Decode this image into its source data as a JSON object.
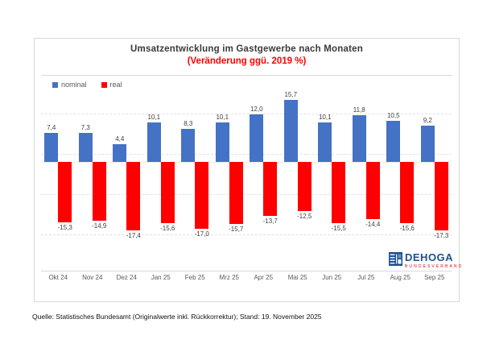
{
  "chart": {
    "title": "Umsatzentwicklung im Gastgewerbe nach Monaten",
    "subtitle": "(Veränderung ggü. 2019 %)",
    "subtitle_color": "#ff0000",
    "legend": [
      {
        "label": "nominal",
        "color": "#4472C4"
      },
      {
        "label": "real",
        "color": "#FF0000"
      }
    ]
  },
  "chart_data": {
    "type": "bar",
    "title": "Umsatzentwicklung im Gastgewerbe nach Monaten",
    "subtitle": "(Veränderung ggü. 2019 %)",
    "categories": [
      "Okt 24",
      "Nov 24",
      "Dez 24",
      "Jan 25",
      "Feb 25",
      "Mrz 25",
      "Apr 25",
      "Mai 25",
      "Jun 25",
      "Jul 25",
      "Aug 25",
      "Sep 25"
    ],
    "series": [
      {
        "name": "nominal",
        "color": "#4472C4",
        "values": [
          7.4,
          7.3,
          4.4,
          10.1,
          8.3,
          10.1,
          12.0,
          15.7,
          10.1,
          11.8,
          10.5,
          9.2
        ],
        "labels": [
          "7,4",
          "7,3",
          "4,4",
          "10,1",
          "8,3",
          "10,1",
          "12,0",
          "15,7",
          "10,1",
          "11,8",
          "10,5",
          "9,2"
        ]
      },
      {
        "name": "real",
        "color": "#FF0000",
        "values": [
          -15.3,
          -14.9,
          -17.4,
          -15.6,
          -17.0,
          -15.7,
          -13.7,
          -12.5,
          -15.5,
          -14.4,
          -15.6,
          -17.3
        ],
        "labels": [
          "-15,3",
          "-14,9",
          "-17,4",
          "-15,6",
          "-17,0",
          "-15,7",
          "-13,7",
          "-12,5",
          "-15,5",
          "-14,4",
          "-15,6",
          "-17,3"
        ]
      }
    ],
    "unit": "%",
    "baseline_year": "2019",
    "legend_position": "top-left",
    "grid": true,
    "ylim": [
      -28,
      17
    ],
    "data_labels": true
  },
  "logo": {
    "name": "DEHOGA",
    "subtitle": "BUNDESVERBAND",
    "color": "#1f5091",
    "accent": "#e30613"
  },
  "footer": {
    "source": "Quelle: Statistisches Bundesamt (Originalwerte inkl. Rückkorrektur); Stand: 19. November 2025"
  }
}
